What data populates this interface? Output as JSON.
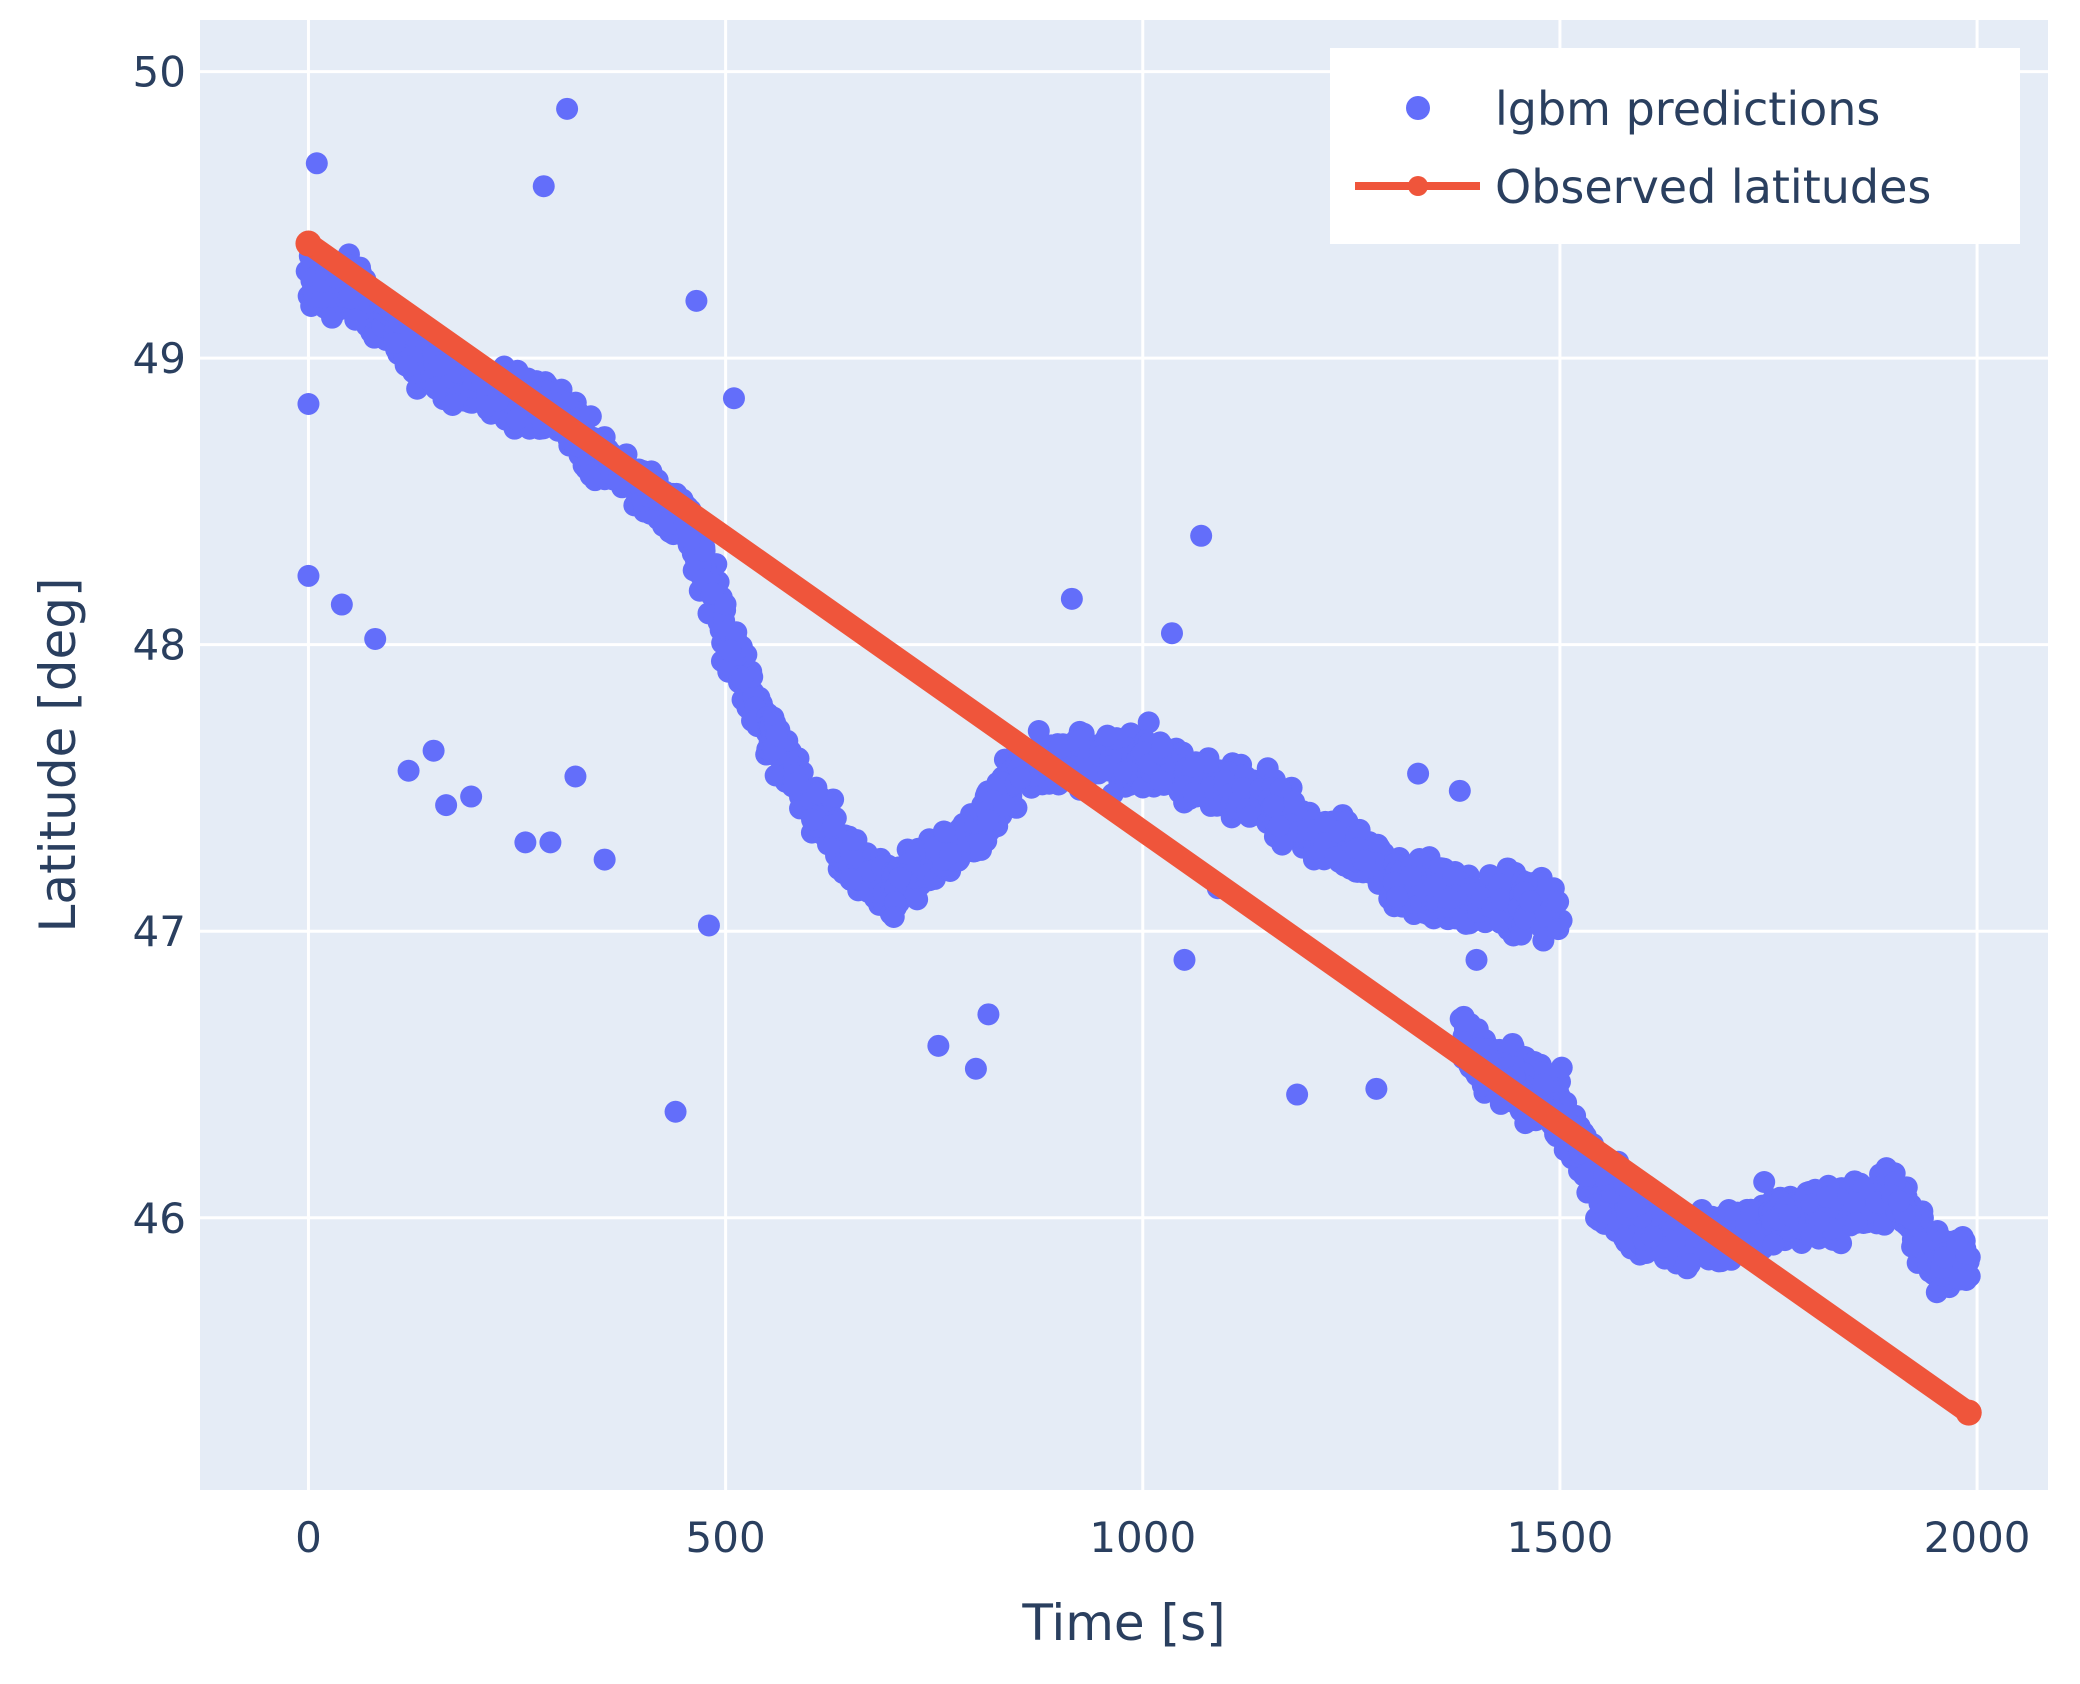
{
  "chart_data": {
    "type": "scatter",
    "title": "",
    "xlabel": "Time [s]",
    "ylabel": "Latitude [deg]",
    "xlim": [
      -130,
      2085
    ],
    "ylim": [
      45.05,
      50.18
    ],
    "xticks": [
      0,
      500,
      1000,
      1500,
      2000
    ],
    "yticks": [
      46,
      47,
      48,
      49,
      50
    ],
    "grid": true,
    "plot_bgcolor": "#e5ecf6",
    "legend": {
      "position": "top-right"
    },
    "series": [
      {
        "name": "lgbm predictions",
        "kind": "markers",
        "color": "#636efa",
        "trend": [
          [
            0,
            49.25
          ],
          [
            50,
            49.25
          ],
          [
            100,
            49.1
          ],
          [
            150,
            48.95
          ],
          [
            200,
            48.9
          ],
          [
            250,
            48.85
          ],
          [
            300,
            48.8
          ],
          [
            350,
            48.65
          ],
          [
            400,
            48.55
          ],
          [
            450,
            48.45
          ],
          [
            500,
            48.05
          ],
          [
            550,
            47.7
          ],
          [
            600,
            47.45
          ],
          [
            650,
            47.25
          ],
          [
            700,
            47.15
          ],
          [
            750,
            47.25
          ],
          [
            800,
            47.35
          ],
          [
            850,
            47.55
          ],
          [
            900,
            47.6
          ],
          [
            950,
            47.6
          ],
          [
            1000,
            47.6
          ],
          [
            1050,
            47.55
          ],
          [
            1100,
            47.5
          ],
          [
            1150,
            47.45
          ],
          [
            1200,
            47.35
          ],
          [
            1250,
            47.3
          ],
          [
            1300,
            47.2
          ],
          [
            1350,
            47.15
          ],
          [
            1400,
            47.12
          ],
          [
            1450,
            47.1
          ],
          [
            1500,
            47.07
          ],
          [
            1390,
            46.6
          ],
          [
            1420,
            46.5
          ],
          [
            1460,
            46.5
          ],
          [
            1500,
            46.4
          ],
          [
            1550,
            46.05
          ],
          [
            1600,
            45.95
          ],
          [
            1650,
            45.9
          ],
          [
            1700,
            45.95
          ],
          [
            1750,
            46.0
          ],
          [
            1800,
            46.0
          ],
          [
            1850,
            46.05
          ],
          [
            1900,
            46.1
          ],
          [
            1950,
            45.85
          ],
          [
            1990,
            45.87
          ]
        ],
        "outliers": [
          [
            310,
            49.87
          ],
          [
            282,
            49.6
          ],
          [
            10,
            49.68
          ],
          [
            0,
            48.24
          ],
          [
            0,
            48.84
          ],
          [
            40,
            48.14
          ],
          [
            80,
            48.02
          ],
          [
            120,
            47.56
          ],
          [
            150,
            47.63
          ],
          [
            165,
            47.44
          ],
          [
            195,
            47.47
          ],
          [
            260,
            47.31
          ],
          [
            290,
            47.31
          ],
          [
            320,
            47.54
          ],
          [
            355,
            47.25
          ],
          [
            440,
            46.37
          ],
          [
            480,
            47.02
          ],
          [
            510,
            48.86
          ],
          [
            465,
            49.2
          ],
          [
            1070,
            48.38
          ],
          [
            915,
            48.16
          ],
          [
            1035,
            48.04
          ],
          [
            1050,
            46.9
          ],
          [
            1185,
            46.43
          ],
          [
            1280,
            46.45
          ],
          [
            1330,
            47.55
          ],
          [
            1380,
            47.49
          ],
          [
            800,
            46.52
          ],
          [
            815,
            46.71
          ],
          [
            755,
            46.6
          ],
          [
            1090,
            47.15
          ],
          [
            1400,
            46.9
          ]
        ]
      },
      {
        "name": "Observed latitudes",
        "kind": "lines+markers",
        "color": "#ef553b",
        "x": [
          0,
          1990
        ],
        "y": [
          49.4,
          45.32
        ]
      }
    ]
  }
}
